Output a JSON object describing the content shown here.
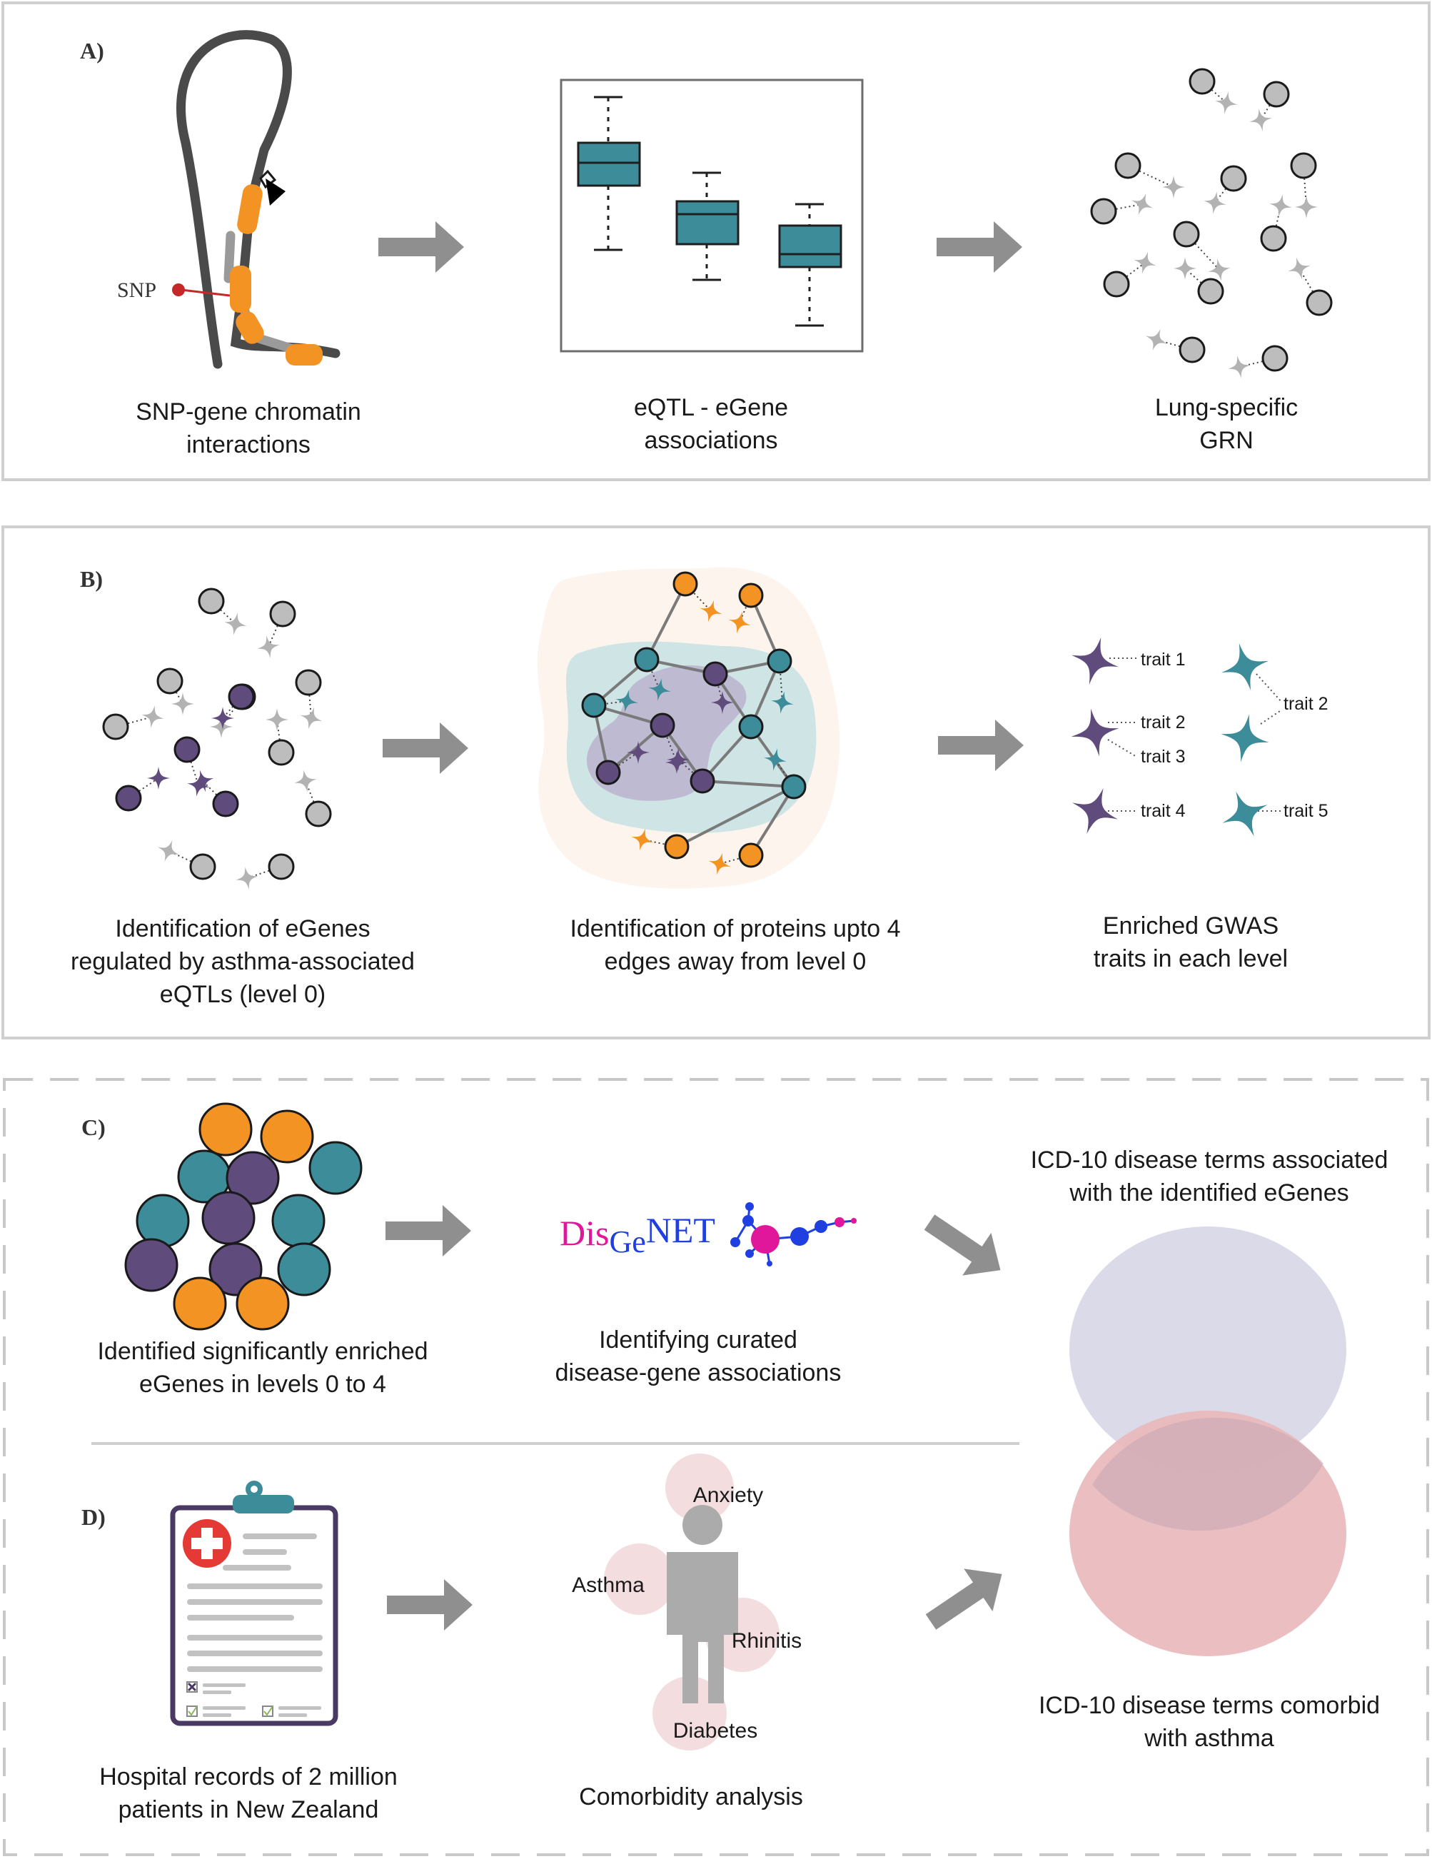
{
  "colors": {
    "orange": "#F39324",
    "teal": "#3C8C9A",
    "purple": "#5F4B7C",
    "gray_node": "#BDBDBD",
    "arrow": "#8F8F8F",
    "venn_top": "#D8D8E8",
    "venn_bottom": "#E9B8BA",
    "snp": "#C62828"
  },
  "panel_a": {
    "letter": "A)",
    "snp_label": "SNP",
    "chromatin_caption": [
      "SNP-gene chromatin",
      "interactions"
    ],
    "eqtl_caption": [
      "eQTL - eGene",
      "associations"
    ],
    "grn_caption": [
      "Lung-specific",
      "GRN"
    ]
  },
  "panel_b": {
    "letter": "B)",
    "egenes_caption": [
      "Identification of eGenes",
      "regulated by asthma-associated",
      "eQTLs (level 0)"
    ],
    "proteins_caption": [
      "Identification of proteins upto 4",
      "edges away from level 0"
    ],
    "gwas_caption": [
      "Enriched GWAS",
      "traits in each level"
    ],
    "traits": [
      "trait 1",
      "trait 2",
      "trait 3",
      "trait 4",
      "trait 2",
      "trait 5"
    ]
  },
  "panel_c": {
    "letter": "C)",
    "egenes_caption": [
      "Identified significantly enriched",
      "eGenes in levels 0 to 4"
    ],
    "disgenet_logo": {
      "part1": "Dis",
      "part2": "Ge",
      "part3": "NET"
    },
    "disgenet_caption": [
      "Identifying curated",
      "disease-gene associations"
    ],
    "icd_top_caption": [
      "ICD-10 disease terms associated",
      "with the identified eGenes"
    ]
  },
  "panel_d": {
    "letter": "D)",
    "records_caption": [
      "Hospital records of 2 million",
      "patients in New Zealand"
    ],
    "comorbidity_caption": "Comorbidity analysis",
    "conditions": [
      "Anxiety",
      "Asthma",
      "Rhinitis",
      "Diabetes"
    ],
    "icd_bottom_caption": [
      "ICD-10 disease terms comorbid",
      "with asthma"
    ]
  }
}
